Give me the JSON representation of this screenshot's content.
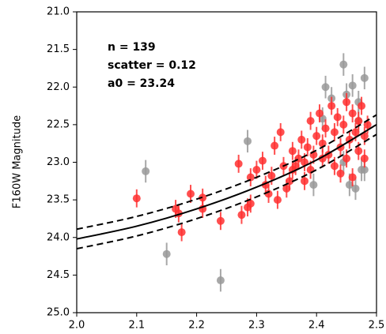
{
  "chart_data": {
    "type": "scatter",
    "ylabel": "F160W Magnitude",
    "annotations": [
      "n = 139",
      "scatter = 0.12",
      "a0 = 23.24"
    ],
    "xlim": [
      2.0,
      2.5
    ],
    "xticks": [
      {
        "value": 2.0,
        "label": "2.0"
      },
      2.1,
      2.2,
      2.3,
      2.4,
      2.5
    ],
    "ylim": [
      21.0,
      25.0
    ],
    "invert_y": true,
    "yticks": [
      {
        "value": 21.0,
        "label": "21.0"
      },
      21.5,
      {
        "value": 22.0,
        "label": "22.0"
      },
      22.5,
      {
        "value": 23.0,
        "label": "23.0"
      },
      23.5,
      {
        "value": 24.0,
        "label": "24.0"
      },
      24.5,
      {
        "value": 25.0,
        "label": "25.0"
      }
    ],
    "series": [
      {
        "color": "#999999",
        "yerr": 0.15,
        "x": [
          2.115,
          2.15,
          2.24,
          2.285,
          2.395,
          2.41,
          2.415,
          2.425,
          2.445,
          2.45,
          2.455,
          2.46,
          2.465,
          2.47,
          2.475,
          2.48,
          2.48,
          2.445,
          2.47
        ],
        "values": [
          23.12,
          24.22,
          24.57,
          22.72,
          23.3,
          22.42,
          22.0,
          22.15,
          21.7,
          22.1,
          23.3,
          21.98,
          23.35,
          22.2,
          23.1,
          21.88,
          23.1,
          23.0,
          22.45
        ]
      },
      {
        "color": "#ff3030",
        "yerr": 0.12,
        "x": [
          2.1,
          2.165,
          2.17,
          2.175,
          2.19,
          2.21,
          2.21,
          2.24,
          2.27,
          2.275,
          2.285,
          2.29,
          2.29,
          2.3,
          2.31,
          2.315,
          2.32,
          2.325,
          2.33,
          2.335,
          2.34,
          2.345,
          2.35,
          2.355,
          2.36,
          2.365,
          2.37,
          2.375,
          2.38,
          2.385,
          2.39,
          2.39,
          2.395,
          2.4,
          2.405,
          2.41,
          2.415,
          2.42,
          2.425,
          2.43,
          2.43,
          2.435,
          2.44,
          2.44,
          2.445,
          2.45,
          2.45,
          2.455,
          2.46,
          2.46,
          2.465,
          2.47,
          2.47,
          2.475,
          2.48,
          2.48,
          2.485,
          2.36,
          2.38,
          2.41
        ],
        "values": [
          23.48,
          23.62,
          23.68,
          23.93,
          23.42,
          23.62,
          23.47,
          23.78,
          23.02,
          23.7,
          23.6,
          23.55,
          23.2,
          23.1,
          22.98,
          23.3,
          23.42,
          23.18,
          22.78,
          23.5,
          22.6,
          23.05,
          23.35,
          23.25,
          22.85,
          23.05,
          22.95,
          22.7,
          23.0,
          22.8,
          22.45,
          23.1,
          22.9,
          22.65,
          22.35,
          22.75,
          22.55,
          22.9,
          22.25,
          22.6,
          23.05,
          22.4,
          22.8,
          23.15,
          22.5,
          22.2,
          22.95,
          22.7,
          22.35,
          23.2,
          22.6,
          22.85,
          22.45,
          22.25,
          22.65,
          22.95,
          22.5,
          23.1,
          23.25,
          22.95
        ]
      },
      {
        "type": "line",
        "color": "#000000",
        "dash": false,
        "x": [
          2.0,
          2.1,
          2.2,
          2.3,
          2.4,
          2.5
        ],
        "values": [
          24.02,
          23.85,
          23.62,
          23.33,
          22.97,
          22.5
        ]
      },
      {
        "type": "line",
        "color": "#000000",
        "dash": true,
        "x": [
          2.0,
          2.1,
          2.2,
          2.3,
          2.4,
          2.5
        ],
        "values": [
          23.89,
          23.72,
          23.49,
          23.2,
          22.84,
          22.37
        ]
      },
      {
        "type": "line",
        "color": "#000000",
        "dash": true,
        "x": [
          2.0,
          2.1,
          2.2,
          2.3,
          2.4,
          2.5
        ],
        "values": [
          24.15,
          23.98,
          23.75,
          23.46,
          23.1,
          22.63
        ]
      }
    ]
  }
}
